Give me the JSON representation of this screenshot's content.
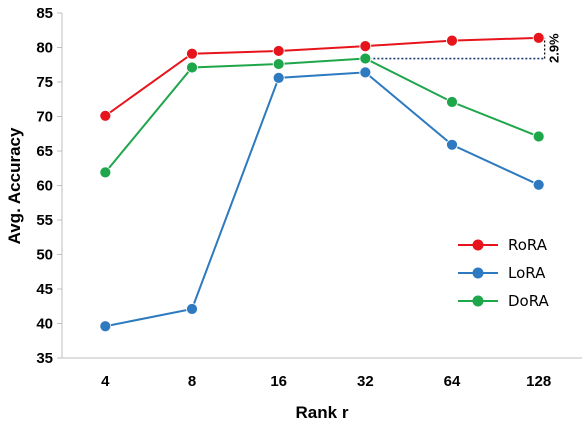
{
  "chart_data": {
    "type": "line",
    "categories": [
      "4",
      "8",
      "16",
      "32",
      "64",
      "128"
    ],
    "xlabel": "Rank r",
    "ylabel": "Avg. Accuracy",
    "ylim": [
      35,
      85
    ],
    "yticks": [
      35,
      40,
      45,
      50,
      55,
      60,
      65,
      70,
      75,
      80,
      85
    ],
    "grid": false,
    "legend_position": "bottom-right",
    "series": [
      {
        "name": "RoRA",
        "color": "#e8141b",
        "values": [
          70.1,
          79.1,
          79.5,
          80.2,
          81.0,
          81.4
        ]
      },
      {
        "name": "LoRA",
        "color": "#2e7ac0",
        "values": [
          39.6,
          42.1,
          75.6,
          76.4,
          65.9,
          60.1
        ]
      },
      {
        "name": "DoRA",
        "color": "#1ea64a",
        "values": [
          61.9,
          77.1,
          77.6,
          78.4,
          72.1,
          67.1
        ]
      }
    ],
    "annotation": {
      "text": "2.9%",
      "from_value": 78.4,
      "to_value": 81.4,
      "at_category": "128"
    }
  }
}
